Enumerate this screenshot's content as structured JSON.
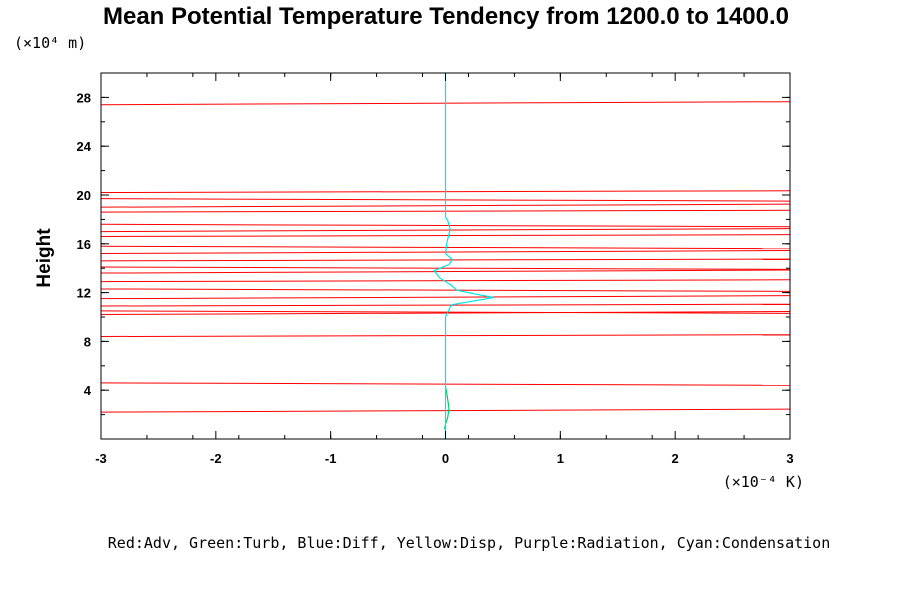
{
  "chart_data": {
    "type": "line",
    "title": "Mean Potential Temperature Tendency from 1200.0 to 1400.0",
    "xlabel_unit": "(×10⁻⁴ K)",
    "ylabel": "Height",
    "ylabel_unit": "(×10⁴ m)",
    "xlim": [
      -3,
      3
    ],
    "ylim": [
      0,
      30
    ],
    "xticks": [
      "-3",
      "-2",
      "-1",
      "0",
      "1",
      "2",
      "3"
    ],
    "yticks": [
      "4",
      "8",
      "12",
      "16",
      "20",
      "24",
      "28"
    ],
    "legend_text": "Red:Adv, Green:Turb, Blue:Diff, Yellow:Disp, Purple:Radiation, Cyan:Condensation",
    "grid": false,
    "series": [
      {
        "name": "Adv",
        "color": "#ff0000",
        "note": "values lie far outside the x range; only near-horizontal clipped segments are visible at these heights",
        "levels": [
          2.2,
          4.6,
          8.4,
          10.2,
          10.5,
          10.9,
          11.5,
          12.3,
          12.9,
          13.6,
          14.1,
          14.6,
          15.2,
          15.8,
          16.6,
          17.0,
          17.6,
          18.6,
          19.0,
          19.7,
          20.2,
          27.4
        ]
      },
      {
        "name": "Turb",
        "color": "#00cc66",
        "y": [
          0.8,
          1.2,
          1.8,
          2.5,
          3.2,
          3.8,
          4.3
        ],
        "x": [
          -0.01,
          0.0,
          0.02,
          0.03,
          0.02,
          0.01,
          0.0
        ]
      },
      {
        "name": "Condensation",
        "color": "#00e5e5",
        "y": [
          0,
          10.0,
          11.0,
          11.4,
          11.6,
          11.9,
          12.2,
          12.6,
          13.2,
          13.8,
          14.3,
          14.7,
          15.2,
          16.0,
          17.2,
          17.9,
          18.2,
          19.0,
          30
        ],
        "x": [
          0,
          0,
          0.05,
          0.3,
          0.42,
          0.25,
          0.1,
          0.05,
          -0.05,
          -0.1,
          0.03,
          0.06,
          0.0,
          0.01,
          0.04,
          0.02,
          0.0,
          0,
          0
        ]
      }
    ]
  }
}
